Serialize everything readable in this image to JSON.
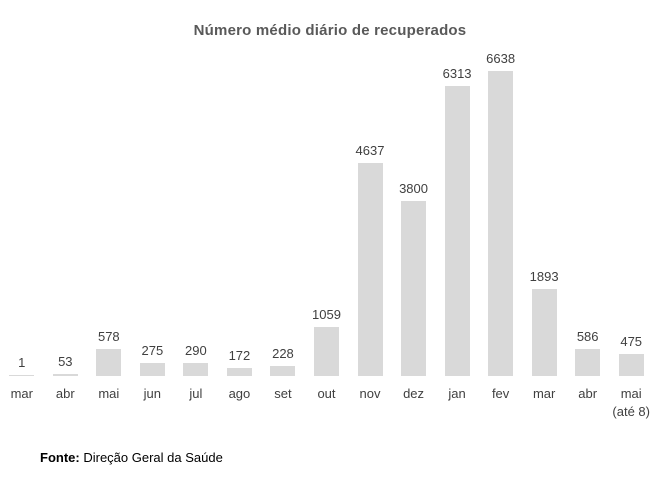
{
  "chart_data": {
    "type": "bar",
    "title": "Número médio diário de recuperados",
    "categories": [
      "mar",
      "abr",
      "mai",
      "jun",
      "jul",
      "ago",
      "set",
      "out",
      "nov",
      "dez",
      "jan",
      "fev",
      "mar",
      "abr",
      "mai\n(até 8)"
    ],
    "values": [
      1,
      53,
      578,
      275,
      290,
      172,
      228,
      1059,
      4637,
      3800,
      6313,
      6638,
      1893,
      586,
      475
    ],
    "xlabel": "",
    "ylabel": "",
    "ylim": [
      0,
      6638
    ],
    "grid": false,
    "axes_visible": false,
    "data_labels": true,
    "legend_position": "none",
    "bar_color": "#d9d9d9",
    "data_label_color": "#404040",
    "category_label_color": "#404040",
    "title_color": "#595959"
  },
  "footer": {
    "label": "Fonte:",
    "text": "Direção Geral da Saúde"
  }
}
